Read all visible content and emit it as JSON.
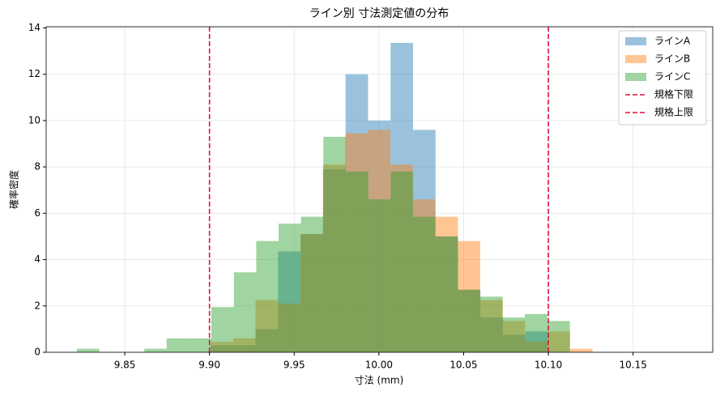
{
  "chart_data": {
    "type": "histogram",
    "title": "ライン別 寸法測定値の分布",
    "xlabel": "寸法 (mm)",
    "ylabel": "確率密度",
    "xlim": [
      9.8036,
      10.197
    ],
    "ylim": [
      0,
      14.05
    ],
    "xticks": [
      9.85,
      {
        "value": 9.9,
        "label": "9.90"
      },
      9.95,
      {
        "value": 10,
        "label": "10.00"
      },
      10.05,
      {
        "value": 10.1,
        "label": "10.10"
      },
      10.15
    ],
    "yticks": [
      0,
      2,
      4,
      6,
      8,
      10,
      12,
      14
    ],
    "grid": true,
    "legend": "upper right",
    "alpha": 0.45,
    "series": [
      {
        "name": "ラインA",
        "color": "#1f77b4",
        "bins": [
          9.9007,
          9.914,
          9.9272,
          9.9405,
          9.9538,
          9.967,
          9.9803,
          9.9936,
          10.0069,
          10.0201,
          10.0334,
          10.0467,
          10.0599,
          10.0732,
          10.0865,
          10.0997
        ],
        "values": [
          0.3,
          0.3,
          1.0,
          4.35,
          5.1,
          7.9,
          12.0,
          10.0,
          13.35,
          9.6,
          5.0,
          2.7,
          1.5,
          0.75,
          0.9
        ]
      },
      {
        "name": "ラインB",
        "color": "#ff7f0e",
        "bins": [
          9.9007,
          9.914,
          9.9272,
          9.9405,
          9.9537,
          9.967,
          9.9803,
          9.9935,
          10.0068,
          10.02,
          10.0333,
          10.0466,
          10.0598,
          10.0731,
          10.0863,
          10.0996,
          10.1128,
          10.1261
        ],
        "values": [
          0.45,
          0.6,
          2.25,
          2.1,
          5.1,
          8.1,
          9.45,
          9.6,
          8.1,
          6.6,
          5.85,
          4.8,
          2.25,
          1.35,
          0.45,
          0.9,
          0.15
        ]
      },
      {
        "name": "ラインC",
        "color": "#2ca02c",
        "bins": [
          9.8218,
          9.835,
          9.8482,
          9.8615,
          9.8747,
          9.8879,
          9.9011,
          9.9144,
          9.9276,
          9.9408,
          9.954,
          9.9672,
          9.9805,
          9.9937,
          10.0069,
          10.0201,
          10.0333,
          10.0466,
          10.0598,
          10.073,
          10.0862,
          10.0995,
          10.1127
        ],
        "values": [
          0.15,
          0,
          0,
          0.15,
          0.6,
          0.6,
          1.95,
          3.45,
          4.8,
          5.55,
          5.85,
          9.3,
          7.8,
          6.6,
          7.8,
          5.85,
          5.0,
          2.7,
          2.4,
          1.5,
          1.65,
          1.35
        ]
      }
    ],
    "vlines": [
      {
        "name": "規格下限",
        "value": 9.9,
        "color": "#dc143c"
      },
      {
        "name": "規格上限",
        "value": 10.1,
        "color": "#dc143c"
      }
    ]
  }
}
